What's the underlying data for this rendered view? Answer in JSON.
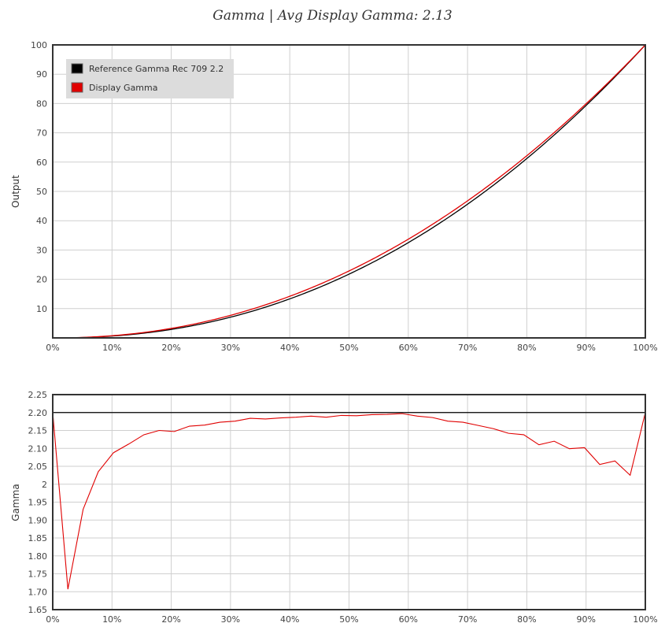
{
  "page": {
    "title": "Gamma | Avg Display Gamma: 2.13"
  },
  "chart_data": [
    {
      "type": "line",
      "ylabel": "Output",
      "xlim": [
        0,
        100
      ],
      "ylim": [
        0,
        100
      ],
      "x_ticks": [
        "0%",
        "10%",
        "20%",
        "30%",
        "40%",
        "50%",
        "60%",
        "70%",
        "80%",
        "90%",
        "100%"
      ],
      "y_ticks": [
        "10",
        "20",
        "30",
        "40",
        "50",
        "60",
        "70",
        "80",
        "90",
        "100"
      ],
      "grid": true,
      "legend_position": "top-left",
      "series": [
        {
          "name": "Reference Gamma Rec 709 2.2",
          "color": "#000000",
          "gamma": 2.2
        },
        {
          "name": "Display Gamma",
          "color": "#e00000",
          "gamma": 2.13
        }
      ]
    },
    {
      "type": "line",
      "ylabel": "Gamma",
      "xlim": [
        0,
        100
      ],
      "ylim": [
        1.65,
        2.25
      ],
      "x_ticks": [
        "0%",
        "10%",
        "20%",
        "30%",
        "40%",
        "50%",
        "60%",
        "70%",
        "80%",
        "90%",
        "100%"
      ],
      "y_ticks": [
        "1.65",
        "1.70",
        "1.75",
        "1.80",
        "1.85",
        "1.90",
        "1.95",
        "2",
        "2.05",
        "2.10",
        "2.15",
        "2.20",
        "2.25"
      ],
      "grid": true,
      "reference_line": {
        "value": 2.2,
        "color": "#000000"
      },
      "series": [
        {
          "name": "Display Gamma",
          "color": "#e00000",
          "x": [
            0,
            2.56,
            5.13,
            7.69,
            10.26,
            12.82,
            15.38,
            17.95,
            20.51,
            23.08,
            25.64,
            28.21,
            30.77,
            33.33,
            35.9,
            38.46,
            41.03,
            43.59,
            46.15,
            48.72,
            51.28,
            53.85,
            56.41,
            58.97,
            61.54,
            64.1,
            66.67,
            69.23,
            71.79,
            74.36,
            76.92,
            79.49,
            82.05,
            84.62,
            87.18,
            89.74,
            92.31,
            94.87,
            97.44,
            100
          ],
          "y": [
            2.2,
            1.707,
            1.93,
            2.035,
            2.088,
            2.112,
            2.138,
            2.15,
            2.147,
            2.162,
            2.165,
            2.173,
            2.176,
            2.184,
            2.182,
            2.185,
            2.187,
            2.19,
            2.187,
            2.192,
            2.191,
            2.194,
            2.195,
            2.197,
            2.19,
            2.186,
            2.176,
            2.173,
            2.164,
            2.155,
            2.142,
            2.138,
            2.11,
            2.12,
            2.099,
            2.102,
            2.055,
            2.065,
            2.025,
            2.2
          ]
        }
      ]
    }
  ]
}
